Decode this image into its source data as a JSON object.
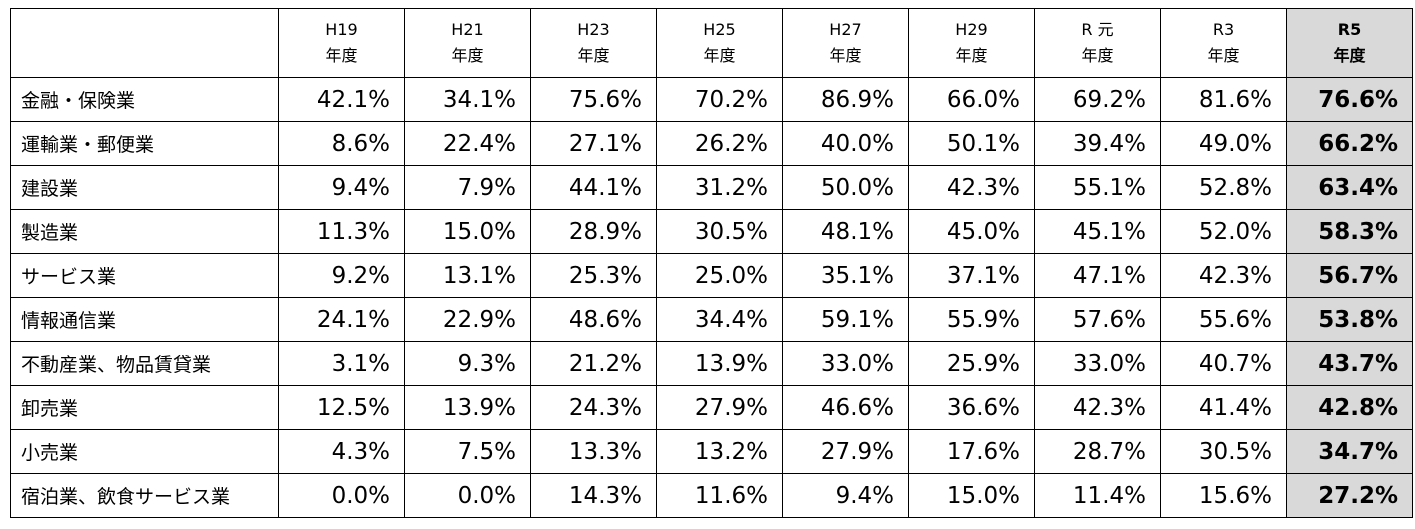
{
  "table": {
    "columns": [
      {
        "top": "H19",
        "bottom": "年度"
      },
      {
        "top": "H21",
        "bottom": "年度"
      },
      {
        "top": "H23",
        "bottom": "年度"
      },
      {
        "top": "H25",
        "bottom": "年度"
      },
      {
        "top": "H27",
        "bottom": "年度"
      },
      {
        "top": "H29",
        "bottom": "年度"
      },
      {
        "top": "R 元",
        "bottom": "年度"
      },
      {
        "top": "R3",
        "bottom": "年度"
      },
      {
        "top": "R5",
        "bottom": "年度"
      }
    ],
    "rows": [
      {
        "label": "金融・保険業",
        "cells": [
          "42.1%",
          "34.1%",
          "75.6%",
          "70.2%",
          "86.9%",
          "66.0%",
          "69.2%",
          "81.6%",
          "76.6%"
        ]
      },
      {
        "label": "運輸業・郵便業",
        "cells": [
          "8.6%",
          "22.4%",
          "27.1%",
          "26.2%",
          "40.0%",
          "50.1%",
          "39.4%",
          "49.0%",
          "66.2%"
        ]
      },
      {
        "label": "建設業",
        "cells": [
          "9.4%",
          "7.9%",
          "44.1%",
          "31.2%",
          "50.0%",
          "42.3%",
          "55.1%",
          "52.8%",
          "63.4%"
        ]
      },
      {
        "label": "製造業",
        "cells": [
          "11.3%",
          "15.0%",
          "28.9%",
          "30.5%",
          "48.1%",
          "45.0%",
          "45.1%",
          "52.0%",
          "58.3%"
        ]
      },
      {
        "label": "サービス業",
        "cells": [
          "9.2%",
          "13.1%",
          "25.3%",
          "25.0%",
          "35.1%",
          "37.1%",
          "47.1%",
          "42.3%",
          "56.7%"
        ]
      },
      {
        "label": "情報通信業",
        "cells": [
          "24.1%",
          "22.9%",
          "48.6%",
          "34.4%",
          "59.1%",
          "55.9%",
          "57.6%",
          "55.6%",
          "53.8%"
        ]
      },
      {
        "label": "不動産業、物品賃貸業",
        "cells": [
          "3.1%",
          "9.3%",
          "21.2%",
          "13.9%",
          "33.0%",
          "25.9%",
          "33.0%",
          "40.7%",
          "43.7%"
        ]
      },
      {
        "label": "卸売業",
        "cells": [
          "12.5%",
          "13.9%",
          "24.3%",
          "27.9%",
          "46.6%",
          "36.6%",
          "42.3%",
          "41.4%",
          "42.8%"
        ]
      },
      {
        "label": "小売業",
        "cells": [
          "4.3%",
          "7.5%",
          "13.3%",
          "13.2%",
          "27.9%",
          "17.6%",
          "28.7%",
          "30.5%",
          "34.7%"
        ]
      },
      {
        "label": "宿泊業、飲食サービス業",
        "cells": [
          "0.0%",
          "0.0%",
          "14.3%",
          "11.6%",
          "9.4%",
          "15.0%",
          "11.4%",
          "15.6%",
          "27.2%"
        ]
      }
    ]
  }
}
